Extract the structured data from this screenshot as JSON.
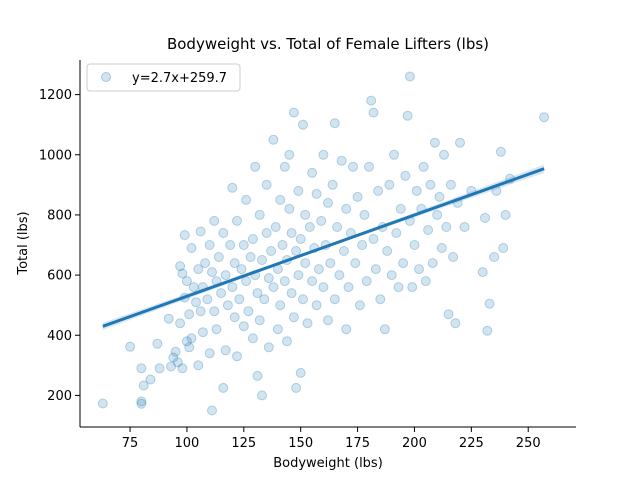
{
  "chart_data": {
    "type": "scatter",
    "title": "Bodyweight vs. Total of Female Lifters (lbs)",
    "xlabel": "Bodyweight (lbs)",
    "ylabel": "Total (lbs)",
    "xlim": [
      53,
      271
    ],
    "ylim": [
      95,
      1315
    ],
    "xticks": [
      75,
      100,
      125,
      150,
      175,
      200,
      225,
      250
    ],
    "yticks": [
      200,
      400,
      600,
      800,
      1000,
      1200
    ],
    "xtick_labels": [
      "75",
      "100",
      "125",
      "150",
      "175",
      "200",
      "225",
      "250"
    ],
    "ytick_labels": [
      "200",
      "400",
      "600",
      "800",
      "1000",
      "1200"
    ],
    "grid": false,
    "legend": {
      "position": "top-left",
      "entries": [
        "y=2.7x+259.7"
      ]
    },
    "regression": {
      "slope": 2.7,
      "intercept": 259.7,
      "x_range": [
        63,
        257
      ]
    },
    "series": [
      {
        "name": "y=2.7x+259.7",
        "color": "#1f77b4",
        "points": [
          [
            63,
            173
          ],
          [
            75,
            362
          ],
          [
            80,
            290
          ],
          [
            80,
            180
          ],
          [
            80,
            172
          ],
          [
            81,
            233
          ],
          [
            84,
            253
          ],
          [
            87,
            372
          ],
          [
            88,
            290
          ],
          [
            92,
            455
          ],
          [
            93,
            296
          ],
          [
            94,
            326
          ],
          [
            95,
            345
          ],
          [
            96,
            310
          ],
          [
            97,
            630
          ],
          [
            97,
            440
          ],
          [
            98,
            290
          ],
          [
            98,
            605
          ],
          [
            99,
            733
          ],
          [
            99,
            525
          ],
          [
            100,
            380
          ],
          [
            100,
            580
          ],
          [
            101,
            470
          ],
          [
            101,
            360
          ],
          [
            102,
            690
          ],
          [
            102,
            390
          ],
          [
            103,
            560
          ],
          [
            104,
            510
          ],
          [
            105,
            620
          ],
          [
            105,
            300
          ],
          [
            106,
            745
          ],
          [
            106,
            480
          ],
          [
            107,
            410
          ],
          [
            107,
            560
          ],
          [
            108,
            640
          ],
          [
            109,
            520
          ],
          [
            110,
            700
          ],
          [
            110,
            340
          ],
          [
            111,
            150
          ],
          [
            111,
            610
          ],
          [
            112,
            780
          ],
          [
            112,
            480
          ],
          [
            113,
            580
          ],
          [
            113,
            420
          ],
          [
            114,
            660
          ],
          [
            115,
            540
          ],
          [
            116,
            225
          ],
          [
            116,
            740
          ],
          [
            117,
            600
          ],
          [
            117,
            350
          ],
          [
            118,
            500
          ],
          [
            119,
            700
          ],
          [
            120,
            560
          ],
          [
            120,
            890
          ],
          [
            121,
            460
          ],
          [
            121,
            640
          ],
          [
            122,
            780
          ],
          [
            122,
            330
          ],
          [
            123,
            520
          ],
          [
            124,
            620
          ],
          [
            125,
            700
          ],
          [
            125,
            430
          ],
          [
            126,
            580
          ],
          [
            126,
            850
          ],
          [
            127,
            480
          ],
          [
            128,
            660
          ],
          [
            129,
            720
          ],
          [
            129,
            390
          ],
          [
            130,
            600
          ],
          [
            130,
            960
          ],
          [
            131,
            540
          ],
          [
            131,
            265
          ],
          [
            132,
            800
          ],
          [
            132,
            450
          ],
          [
            133,
            650
          ],
          [
            133,
            200
          ],
          [
            134,
            520
          ],
          [
            135,
            740
          ],
          [
            135,
            900
          ],
          [
            136,
            590
          ],
          [
            136,
            360
          ],
          [
            137,
            680
          ],
          [
            138,
            560
          ],
          [
            138,
            1050
          ],
          [
            139,
            760
          ],
          [
            140,
            620
          ],
          [
            140,
            420
          ],
          [
            141,
            850
          ],
          [
            141,
            500
          ],
          [
            142,
            700
          ],
          [
            143,
            580
          ],
          [
            143,
            960
          ],
          [
            144,
            650
          ],
          [
            144,
            380
          ],
          [
            145,
            820
          ],
          [
            145,
            1000
          ],
          [
            146,
            540
          ],
          [
            146,
            740
          ],
          [
            147,
            1140
          ],
          [
            147,
            460
          ],
          [
            148,
            680
          ],
          [
            148,
            225
          ],
          [
            149,
            600
          ],
          [
            149,
            880
          ],
          [
            150,
            720
          ],
          [
            150,
            275
          ],
          [
            151,
            520
          ],
          [
            151,
            1100
          ],
          [
            152,
            640
          ],
          [
            152,
            800
          ],
          [
            153,
            440
          ],
          [
            154,
            760
          ],
          [
            155,
            580
          ],
          [
            155,
            940
          ],
          [
            156,
            690
          ],
          [
            157,
            500
          ],
          [
            157,
            870
          ],
          [
            158,
            620
          ],
          [
            159,
            780
          ],
          [
            160,
            560
          ],
          [
            160,
            1000
          ],
          [
            161,
            700
          ],
          [
            162,
            450
          ],
          [
            162,
            840
          ],
          [
            163,
            640
          ],
          [
            164,
            900
          ],
          [
            165,
            520
          ],
          [
            165,
            1105
          ],
          [
            166,
            760
          ],
          [
            167,
            600
          ],
          [
            168,
            980
          ],
          [
            169,
            680
          ],
          [
            170,
            420
          ],
          [
            170,
            820
          ],
          [
            171,
            560
          ],
          [
            172,
            740
          ],
          [
            173,
            960
          ],
          [
            174,
            640
          ],
          [
            175,
            860
          ],
          [
            176,
            500
          ],
          [
            177,
            700
          ],
          [
            178,
            800
          ],
          [
            179,
            580
          ],
          [
            180,
            960
          ],
          [
            181,
            1180
          ],
          [
            182,
            720
          ],
          [
            182,
            1140
          ],
          [
            183,
            620
          ],
          [
            184,
            880
          ],
          [
            185,
            520
          ],
          [
            186,
            760
          ],
          [
            187,
            420
          ],
          [
            188,
            680
          ],
          [
            189,
            900
          ],
          [
            190,
            600
          ],
          [
            191,
            1000
          ],
          [
            192,
            740
          ],
          [
            193,
            560
          ],
          [
            194,
            820
          ],
          [
            195,
            640
          ],
          [
            196,
            930
          ],
          [
            197,
            1130
          ],
          [
            198,
            780
          ],
          [
            198,
            1260
          ],
          [
            199,
            560
          ],
          [
            200,
            700
          ],
          [
            201,
            880
          ],
          [
            202,
            620
          ],
          [
            203,
            820
          ],
          [
            204,
            960
          ],
          [
            205,
            580
          ],
          [
            206,
            750
          ],
          [
            207,
            900
          ],
          [
            208,
            640
          ],
          [
            209,
            1040
          ],
          [
            210,
            800
          ],
          [
            211,
            860
          ],
          [
            212,
            690
          ],
          [
            213,
            1000
          ],
          [
            214,
            760
          ],
          [
            215,
            470
          ],
          [
            216,
            900
          ],
          [
            217,
            660
          ],
          [
            218,
            440
          ],
          [
            219,
            840
          ],
          [
            220,
            1040
          ],
          [
            222,
            760
          ],
          [
            225,
            880
          ],
          [
            230,
            610
          ],
          [
            231,
            790
          ],
          [
            232,
            415
          ],
          [
            233,
            505
          ],
          [
            235,
            660
          ],
          [
            236,
            880
          ],
          [
            238,
            1010
          ],
          [
            239,
            690
          ],
          [
            240,
            800
          ],
          [
            242,
            920
          ],
          [
            257,
            1125
          ]
        ]
      }
    ]
  }
}
